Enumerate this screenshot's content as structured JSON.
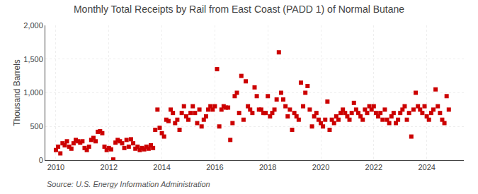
{
  "chart_data": {
    "type": "scatter",
    "title": "Monthly Total Receipts by Rail from East Coast (PADD 1) of Normal Butane",
    "ylabel": "Thousand Barrels",
    "annotations": [
      "Source: U.S. Energy Information Administration"
    ],
    "color": "#cc0000",
    "marker": "square",
    "grid": true,
    "xlim": [
      2009.6,
      2025.4
    ],
    "xticks": [
      2010,
      2012,
      2014,
      2016,
      2018,
      2020,
      2022,
      2024
    ],
    "ylim": [
      0,
      2000
    ],
    "yticks": [
      0,
      500,
      {
        "value": 1000,
        "label": "1,000"
      },
      {
        "value": 1500,
        "label": "1,500"
      },
      {
        "value": 2000,
        "label": "2,000"
      }
    ],
    "x": [
      2010.0,
      2010.083,
      2010.167,
      2010.25,
      2010.333,
      2010.417,
      2010.5,
      2010.583,
      2010.667,
      2010.75,
      2010.833,
      2010.917,
      2011.0,
      2011.083,
      2011.167,
      2011.25,
      2011.333,
      2011.417,
      2011.5,
      2011.583,
      2011.667,
      2011.75,
      2011.833,
      2011.917,
      2012.0,
      2012.083,
      2012.167,
      2012.25,
      2012.333,
      2012.417,
      2012.5,
      2012.583,
      2012.667,
      2012.75,
      2012.833,
      2012.917,
      2013.0,
      2013.083,
      2013.167,
      2013.25,
      2013.333,
      2013.417,
      2013.5,
      2013.583,
      2013.667,
      2013.75,
      2013.833,
      2013.917,
      2014.0,
      2014.083,
      2014.167,
      2014.25,
      2014.333,
      2014.417,
      2014.5,
      2014.583,
      2014.667,
      2014.75,
      2014.833,
      2014.917,
      2015.0,
      2015.083,
      2015.167,
      2015.25,
      2015.333,
      2015.417,
      2015.5,
      2015.583,
      2015.667,
      2015.75,
      2015.833,
      2015.917,
      2016.0,
      2016.083,
      2016.167,
      2016.25,
      2016.333,
      2016.417,
      2016.5,
      2016.583,
      2016.667,
      2016.75,
      2016.833,
      2016.917,
      2017.0,
      2017.083,
      2017.167,
      2017.25,
      2017.333,
      2017.417,
      2017.5,
      2017.583,
      2017.667,
      2017.75,
      2017.833,
      2017.917,
      2018.0,
      2018.083,
      2018.167,
      2018.25,
      2018.333,
      2018.417,
      2018.5,
      2018.583,
      2018.667,
      2018.75,
      2018.833,
      2018.917,
      2019.0,
      2019.083,
      2019.167,
      2019.25,
      2019.333,
      2019.417,
      2019.5,
      2019.583,
      2019.667,
      2019.75,
      2019.833,
      2019.917,
      2020.0,
      2020.083,
      2020.167,
      2020.25,
      2020.333,
      2020.417,
      2020.5,
      2020.583,
      2020.667,
      2020.75,
      2020.833,
      2020.917,
      2021.0,
      2021.083,
      2021.167,
      2021.25,
      2021.333,
      2021.417,
      2021.5,
      2021.583,
      2021.667,
      2021.75,
      2021.833,
      2021.917,
      2022.0,
      2022.083,
      2022.167,
      2022.25,
      2022.333,
      2022.417,
      2022.5,
      2022.583,
      2022.667,
      2022.75,
      2022.833,
      2022.917,
      2023.0,
      2023.083,
      2023.167,
      2023.25,
      2023.333,
      2023.417,
      2023.5,
      2023.583,
      2023.667,
      2023.75,
      2023.833,
      2023.917,
      2024.0,
      2024.083,
      2024.167,
      2024.25,
      2024.333,
      2024.417,
      2024.5,
      2024.583,
      2024.667,
      2024.75,
      2024.833
    ],
    "values": [
      150,
      200,
      100,
      250,
      220,
      280,
      200,
      170,
      250,
      300,
      280,
      260,
      280,
      180,
      150,
      200,
      300,
      330,
      280,
      420,
      430,
      400,
      200,
      150,
      180,
      160,
      10,
      260,
      300,
      280,
      250,
      180,
      300,
      200,
      310,
      250,
      170,
      200,
      150,
      180,
      160,
      200,
      170,
      220,
      180,
      450,
      750,
      480,
      400,
      350,
      600,
      580,
      750,
      700,
      550,
      600,
      450,
      700,
      800,
      650,
      600,
      700,
      800,
      700,
      550,
      750,
      500,
      600,
      650,
      750,
      800,
      750,
      800,
      1350,
      500,
      750,
      800,
      780,
      780,
      300,
      550,
      950,
      1000,
      700,
      1250,
      600,
      1170,
      800,
      750,
      700,
      1080,
      950,
      750,
      750,
      700,
      700,
      950,
      650,
      700,
      750,
      900,
      1600,
      1000,
      900,
      800,
      650,
      750,
      450,
      700,
      650,
      600,
      1150,
      800,
      1000,
      1100,
      750,
      500,
      650,
      700,
      600,
      550,
      500,
      600,
      870,
      450,
      600,
      550,
      650,
      600,
      700,
      750,
      700,
      650,
      600,
      700,
      850,
      750,
      700,
      650,
      600,
      750,
      700,
      800,
      750,
      800,
      700,
      650,
      700,
      600,
      750,
      600,
      550,
      650,
      700,
      550,
      600,
      700,
      750,
      800,
      600,
      700,
      350,
      750,
      1000,
      800,
      750,
      700,
      800,
      650,
      600,
      700,
      750,
      1050,
      800,
      700,
      600,
      550,
      950,
      750
    ]
  }
}
